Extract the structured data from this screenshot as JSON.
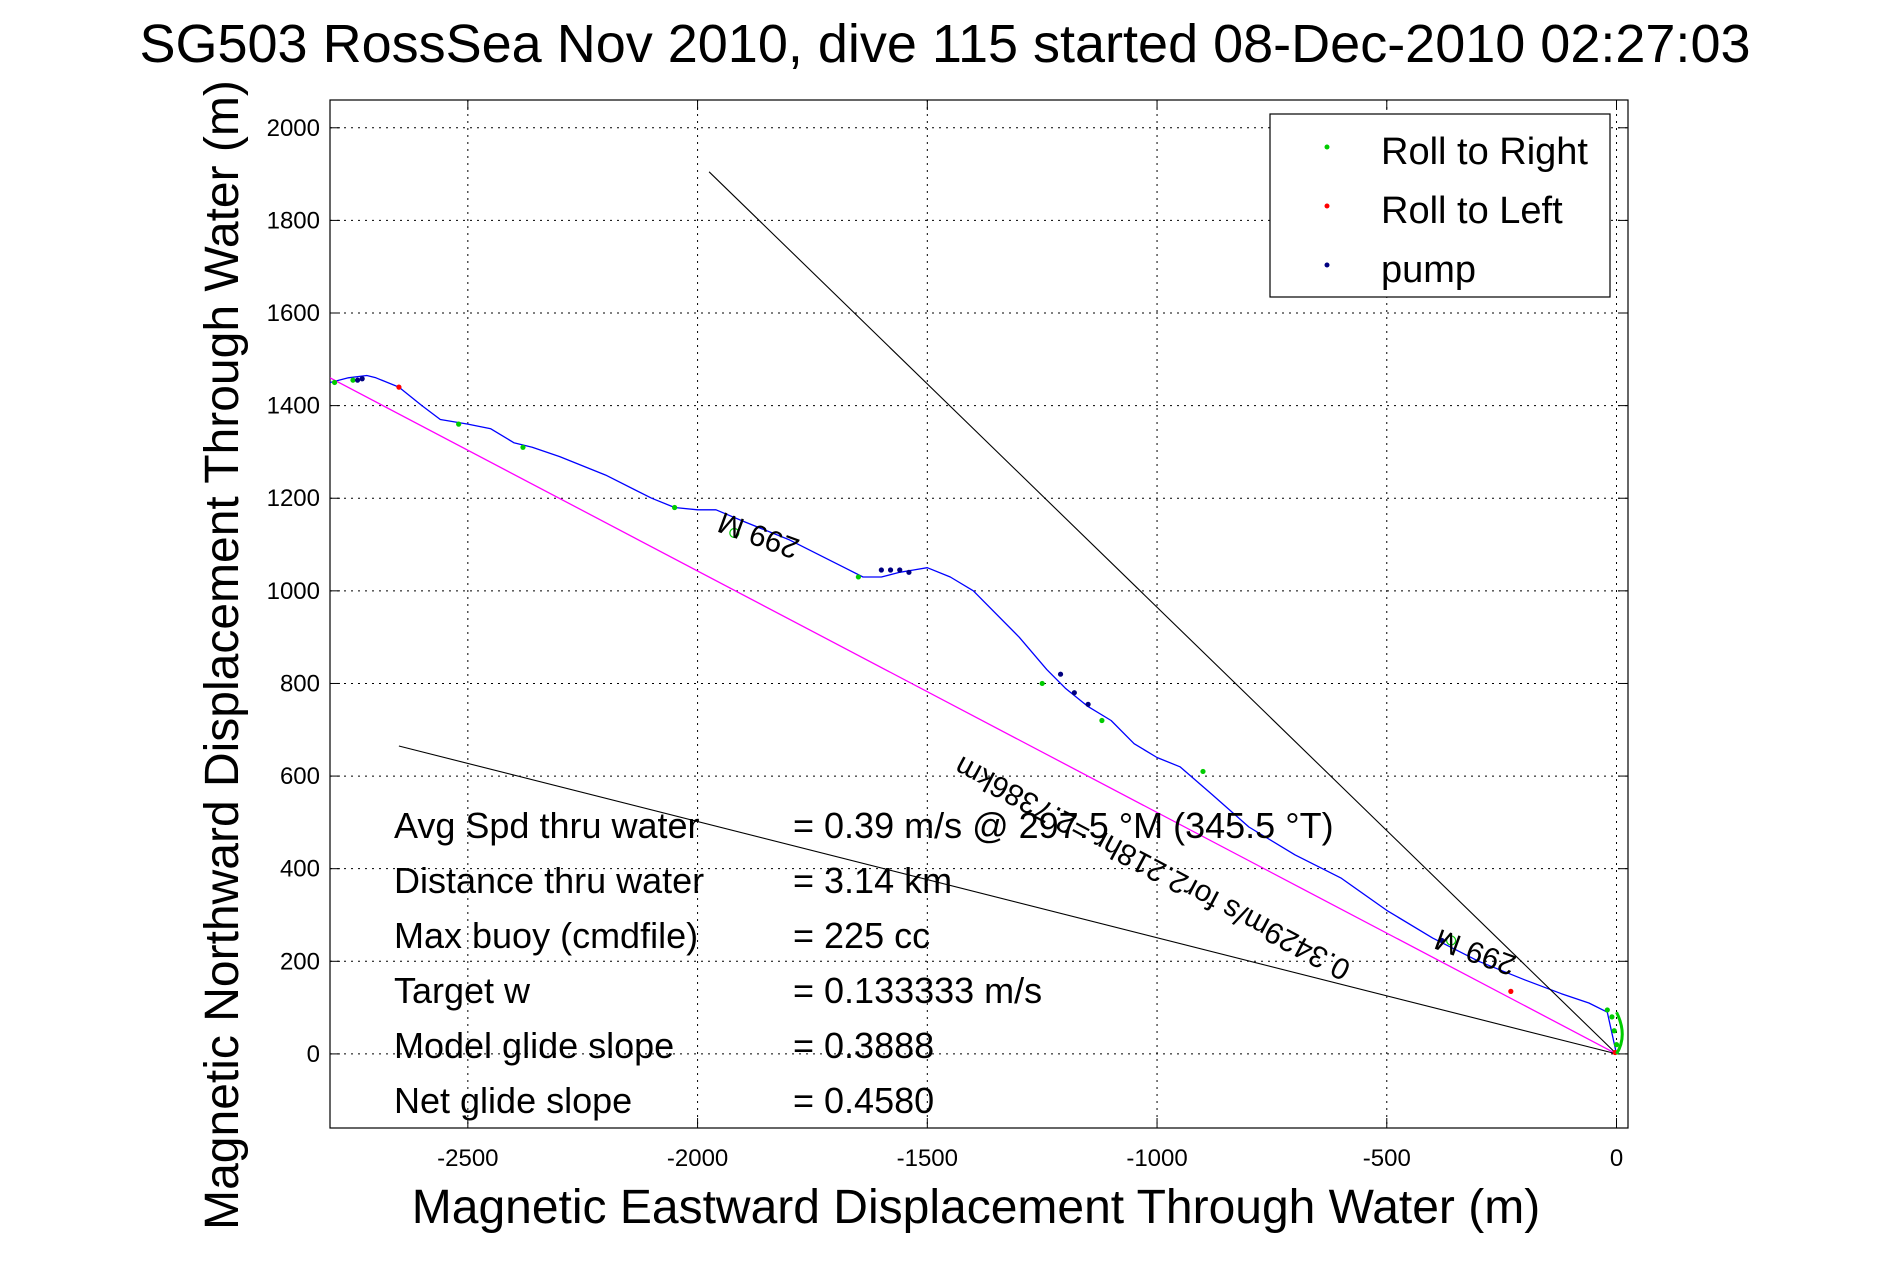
{
  "title": "SG503 RossSea Nov 2010, dive 115 started 08-Dec-2010 02:27:03",
  "chart_data": {
    "type": "line",
    "title": "SG503 RossSea Nov 2010, dive 115 started 08-Dec-2010 02:27:03",
    "xlabel": "Magnetic Eastward Displacement Through Water (m)",
    "ylabel": "Magnetic Northward Displacement Through Water (m)",
    "xlim": [
      -2800,
      25
    ],
    "ylim": [
      -160,
      2060
    ],
    "x_ticks": [
      -2500,
      -2000,
      -1500,
      -1000,
      -500,
      0
    ],
    "y_ticks": [
      0,
      200,
      400,
      600,
      800,
      1000,
      1200,
      1400,
      1600,
      1800,
      2000
    ],
    "grid": true,
    "legend_position": "top-right",
    "colors": {
      "track": "#0000ff",
      "roll_right": "#00cc00",
      "roll_left": "#ff0000",
      "pump": "#000080",
      "net_line": "#ff00ff",
      "envelope": "#000000"
    },
    "legend": [
      {
        "label": "Roll to Right",
        "color": "#00cc00"
      },
      {
        "label": "Roll to Left",
        "color": "#ff0000"
      },
      {
        "label": "pump",
        "color": "#000080"
      }
    ],
    "series": [
      {
        "name": "track",
        "x": [
          0,
          -20,
          -60,
          -120,
          -200,
          -300,
          -400,
          -500,
          -600,
          -700,
          -800,
          -880,
          -950,
          -1000,
          -1050,
          -1100,
          -1150,
          -1200,
          -1240,
          -1300,
          -1400,
          -1450,
          -1500,
          -1530,
          -1560,
          -1600,
          -1640,
          -1680,
          -1700,
          -1800,
          -1900,
          -1960,
          -2000,
          -2050,
          -2100,
          -2200,
          -2300,
          -2360,
          -2400,
          -2450,
          -2500,
          -2560,
          -2600,
          -2650,
          -2700,
          -2720,
          -2760,
          -2800
        ],
        "y": [
          0,
          90,
          110,
          130,
          160,
          200,
          250,
          310,
          380,
          430,
          490,
          560,
          620,
          640,
          670,
          720,
          750,
          790,
          830,
          900,
          1000,
          1030,
          1050,
          1045,
          1040,
          1030,
          1030,
          1050,
          1060,
          1110,
          1150,
          1175,
          1175,
          1180,
          1200,
          1250,
          1290,
          1310,
          1320,
          1350,
          1360,
          1370,
          1400,
          1440,
          1460,
          1465,
          1460,
          1450
        ]
      },
      {
        "name": "net",
        "x": [
          0,
          -2800
        ],
        "y": [
          0,
          1460
        ]
      },
      {
        "name": "envelope-left",
        "x": [
          0,
          -2650
        ],
        "y": [
          0,
          665
        ]
      },
      {
        "name": "envelope-right",
        "x": [
          0,
          -1975
        ],
        "y": [
          0,
          1905
        ]
      }
    ],
    "markers": {
      "roll_right": {
        "x": [
          0,
          -5,
          -10,
          -20,
          -900,
          -1120,
          -1250,
          -1650,
          -2050,
          -2380,
          -2520,
          -2750,
          -2790
        ],
        "y": [
          20,
          50,
          80,
          95,
          610,
          720,
          800,
          1030,
          1180,
          1310,
          1360,
          1455,
          1450
        ]
      },
      "roll_left": {
        "x": [
          -3,
          -230,
          -2650
        ],
        "y": [
          3,
          135,
          1440
        ]
      },
      "pump": {
        "x": [
          -380,
          -1210,
          -1180,
          -1150,
          -1600,
          -1580,
          -1560,
          -1540,
          -2740,
          -2730
        ],
        "y": [
          245,
          820,
          780,
          755,
          1045,
          1045,
          1045,
          1040,
          1455,
          1458
        ]
      },
      "circles": {
        "x": [
          -1920,
          -360
        ],
        "y": [
          1125,
          245
        ]
      }
    },
    "annotations": [
      {
        "text": "299 M",
        "x": -1860,
        "y": 1140,
        "angle": 200
      },
      {
        "text": "299 M",
        "x": -300,
        "y": 240,
        "angle": 200
      },
      {
        "text": "0.3429m/s for2.218hr =2.7386km",
        "x": -1000,
        "y": 420,
        "angle": 208
      }
    ],
    "stats": [
      {
        "label": "Avg Spd thru water",
        "value": "=  0.39 m/s @ 297.5 °M (345.5 °T)"
      },
      {
        "label": "Distance thru water",
        "value": "=  3.14 km"
      },
      {
        "label": "Max buoy (cmdfile)",
        "value": "= 225 cc"
      },
      {
        "label": "Target w",
        "value": "= 0.133333 m/s"
      },
      {
        "label": "Model glide slope",
        "value": "= 0.3888"
      },
      {
        "label": "Net glide slope",
        "value": "= 0.4580"
      }
    ]
  }
}
